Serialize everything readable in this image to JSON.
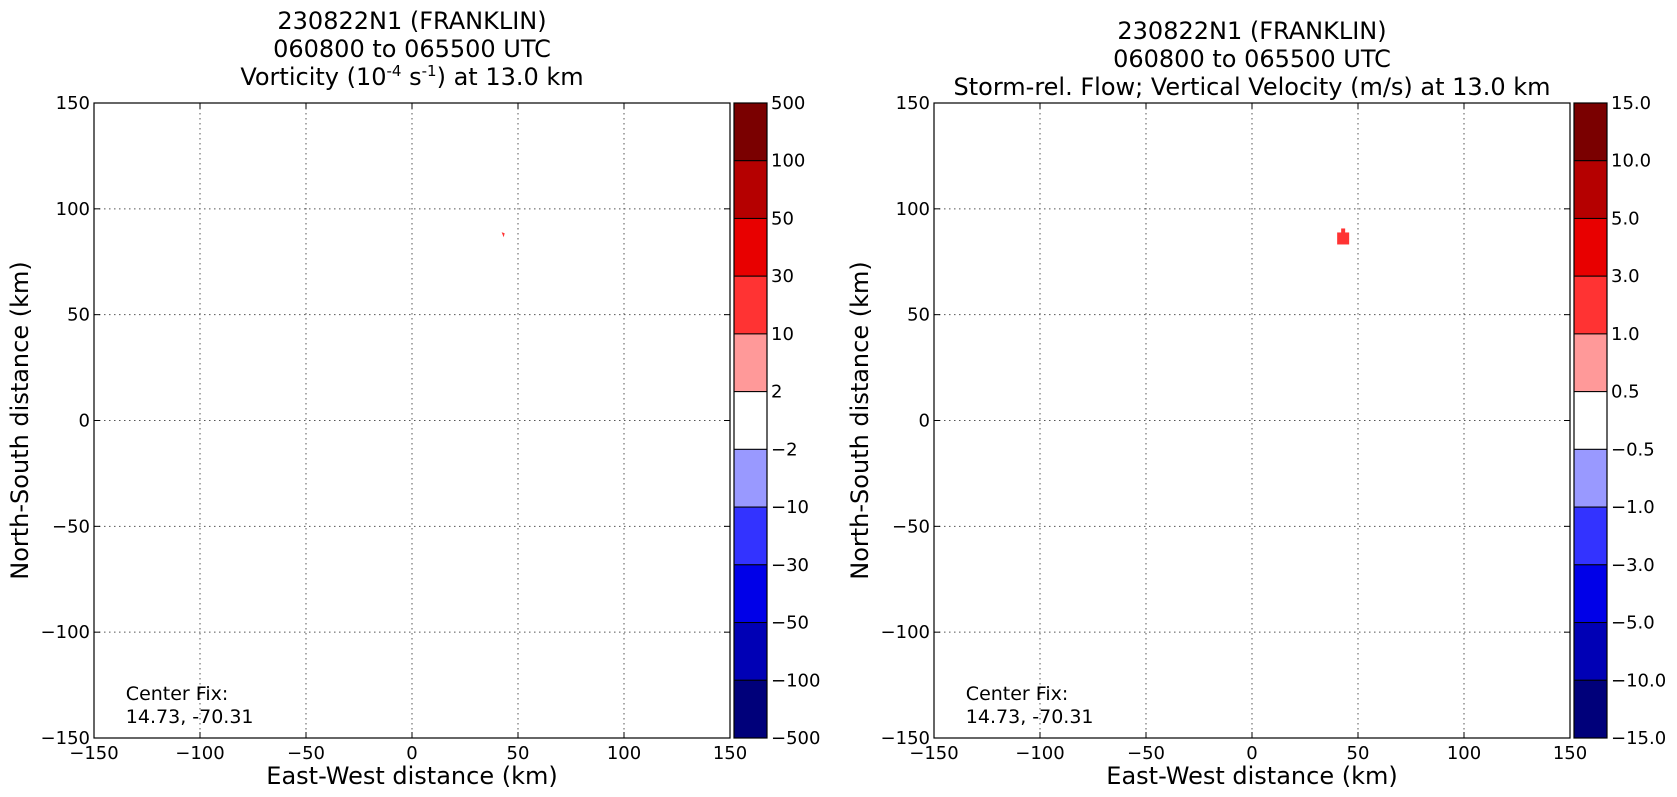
{
  "chart_data": [
    {
      "type": "contour",
      "title": [
        "230822N1 (FRANKLIN)",
        "060800 to 065500 UTC"
      ],
      "subtitle": {
        "prefix": "Vorticity (10",
        "exp1": "-4",
        "mid": " s",
        "exp2": "-1",
        "suffix": ") at 13.0 km"
      },
      "xlabel": "East-West distance (km)",
      "ylabel": "North-South distance (km)",
      "xlim": [
        -150,
        150
      ],
      "ylim": [
        -150,
        150
      ],
      "x_ticks": [
        "−150",
        "−100",
        "−50",
        "0",
        "50",
        "100",
        "150"
      ],
      "y_ticks": [
        "150",
        "100",
        "50",
        "0",
        "−50",
        "−100",
        "−150"
      ],
      "tick_values": [
        -150,
        -100,
        -50,
        0,
        50,
        100,
        150
      ],
      "grid": true,
      "colorbar": {
        "labels": [
          "500",
          "100",
          "50",
          "30",
          "10",
          "2",
          "−2",
          "−10",
          "−30",
          "−50",
          "−100",
          "−500"
        ],
        "colors": [
          "#7a0000",
          "#b50000",
          "#e80000",
          "#ff3333",
          "#ff9999",
          "#ffffff",
          "#9999ff",
          "#3333ff",
          "#0000e8",
          "#0000b5",
          "#00007a"
        ]
      },
      "features": [
        {
          "x": 43,
          "y": 88,
          "color": "#ff3333",
          "desc": "tiny red speck"
        }
      ],
      "annotation": [
        "Center Fix:",
        "14.73, -70.31"
      ]
    },
    {
      "type": "contour",
      "title": [
        "230822N1 (FRANKLIN)",
        "060800 to 065500 UTC",
        "Storm-rel. Flow; Vertical Velocity (m/s) at 13.0 km"
      ],
      "xlabel": "East-West distance (km)",
      "ylabel": "North-South distance (km)",
      "xlim": [
        -150,
        150
      ],
      "ylim": [
        -150,
        150
      ],
      "x_ticks": [
        "−150",
        "−100",
        "−50",
        "0",
        "50",
        "100",
        "150"
      ],
      "y_ticks": [
        "150",
        "100",
        "50",
        "0",
        "−50",
        "−100",
        "−150"
      ],
      "tick_values": [
        -150,
        -100,
        -50,
        0,
        50,
        100,
        150
      ],
      "grid": true,
      "colorbar": {
        "labels": [
          "15.0",
          "10.0",
          "5.0",
          "3.0",
          "1.0",
          "0.5",
          "−0.5",
          "−1.0",
          "−3.0",
          "−5.0",
          "−10.0",
          "−15.0"
        ],
        "colors": [
          "#7a0000",
          "#b50000",
          "#e80000",
          "#ff3333",
          "#ff9999",
          "#ffffff",
          "#9999ff",
          "#3333ff",
          "#0000e8",
          "#0000b5",
          "#00007a"
        ]
      },
      "features": [
        {
          "x": 43,
          "y": 86,
          "color": "#ff3333",
          "desc": "small red blob"
        }
      ],
      "annotation": [
        "Center Fix:",
        "14.73, -70.31"
      ]
    }
  ]
}
